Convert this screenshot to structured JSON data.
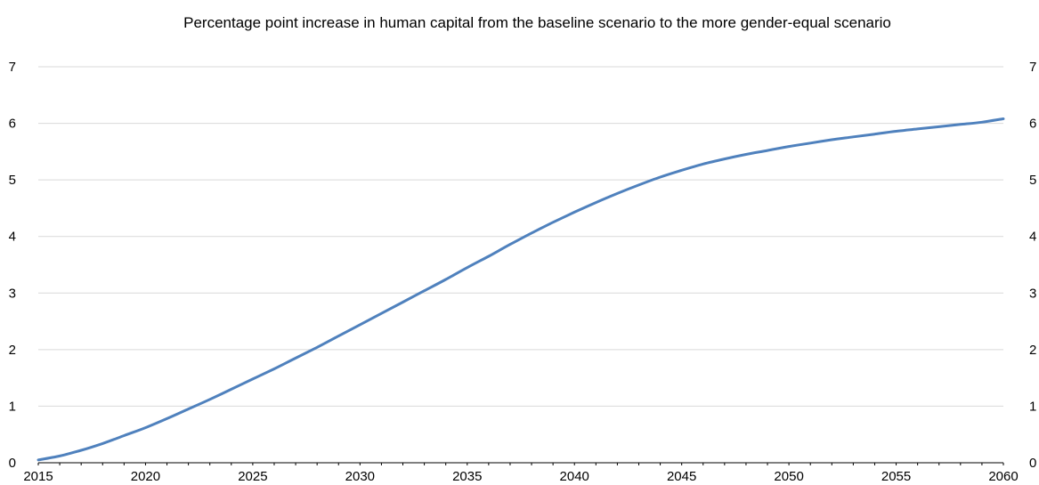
{
  "chart_data": {
    "type": "line",
    "title": "Percentage point increase in human capital from the baseline scenario to the more gender-equal scenario",
    "xlabel": "",
    "ylabel": "",
    "x_ticks": [
      "2015",
      "2020",
      "2025",
      "2030",
      "2035",
      "2040",
      "2045",
      "2050",
      "2055",
      "2060"
    ],
    "y_ticks": [
      "0",
      "1",
      "2",
      "3",
      "4",
      "5",
      "6",
      "7"
    ],
    "xlim": [
      2015,
      2060
    ],
    "ylim": [
      0,
      7
    ],
    "grid": true,
    "line_color": "#4f81bd",
    "series": [
      {
        "x": [
          2015,
          2016,
          2017,
          2018,
          2019,
          2020,
          2021,
          2022,
          2023,
          2024,
          2025,
          2026,
          2027,
          2028,
          2029,
          2030,
          2031,
          2032,
          2033,
          2034,
          2035,
          2036,
          2037,
          2038,
          2039,
          2040,
          2041,
          2042,
          2043,
          2044,
          2045,
          2046,
          2047,
          2048,
          2049,
          2050,
          2051,
          2052,
          2053,
          2054,
          2055,
          2056,
          2057,
          2058,
          2059,
          2060
        ],
        "values": [
          0.05,
          0.12,
          0.22,
          0.34,
          0.48,
          0.62,
          0.78,
          0.95,
          1.12,
          1.3,
          1.48,
          1.66,
          1.85,
          2.04,
          2.24,
          2.44,
          2.64,
          2.84,
          3.04,
          3.24,
          3.45,
          3.65,
          3.86,
          4.06,
          4.25,
          4.43,
          4.6,
          4.76,
          4.91,
          5.05,
          5.17,
          5.28,
          5.37,
          5.45,
          5.52,
          5.59,
          5.65,
          5.71,
          5.76,
          5.81,
          5.86,
          5.9,
          5.94,
          5.98,
          6.02,
          6.08
        ]
      }
    ]
  }
}
